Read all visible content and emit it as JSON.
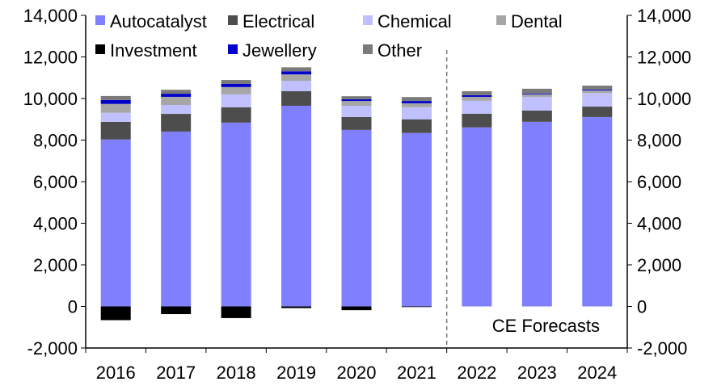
{
  "chart_data": {
    "type": "bar",
    "stacked": true,
    "categories": [
      "2016",
      "2017",
      "2018",
      "2019",
      "2020",
      "2021",
      "2022",
      "2023",
      "2024"
    ],
    "series": [
      {
        "name": "Autocatalyst",
        "color": "#8080ff",
        "values": [
          8030,
          8410,
          8840,
          9650,
          8490,
          8340,
          8610,
          8880,
          9110
        ]
      },
      {
        "name": "Electrical",
        "color": "#4d4d4d",
        "values": [
          850,
          850,
          740,
          700,
          620,
          660,
          660,
          540,
          500
        ]
      },
      {
        "name": "Chemical",
        "color": "#c0c0ff",
        "values": [
          430,
          430,
          620,
          500,
          540,
          580,
          620,
          660,
          660
        ]
      },
      {
        "name": "Dental",
        "color": "#a6a6a6",
        "values": [
          430,
          390,
          350,
          310,
          230,
          190,
          190,
          120,
          120
        ]
      },
      {
        "name": "Investment",
        "color": "#000000",
        "values": [
          -660,
          -370,
          -560,
          -80,
          -180,
          -30,
          0,
          0,
          0
        ]
      },
      {
        "name": "Jewellery",
        "color": "#0000cc",
        "values": [
          190,
          150,
          150,
          150,
          80,
          110,
          80,
          40,
          40
        ]
      },
      {
        "name": "Other",
        "color": "#7a7a7a",
        "values": [
          190,
          190,
          190,
          190,
          150,
          190,
          190,
          230,
          190
        ]
      }
    ],
    "ylim": [
      -2000,
      14000
    ],
    "yticks": [
      -2000,
      0,
      2000,
      4000,
      6000,
      8000,
      10000,
      12000,
      14000
    ],
    "ytick_labels": [
      "-2,000",
      "0",
      "2,000",
      "4,000",
      "6,000",
      "8,000",
      "10,000",
      "12,000",
      "14,000"
    ],
    "legend_placement": "top-left",
    "annotation": "CE Forecasts",
    "forecast_start": "2022"
  }
}
